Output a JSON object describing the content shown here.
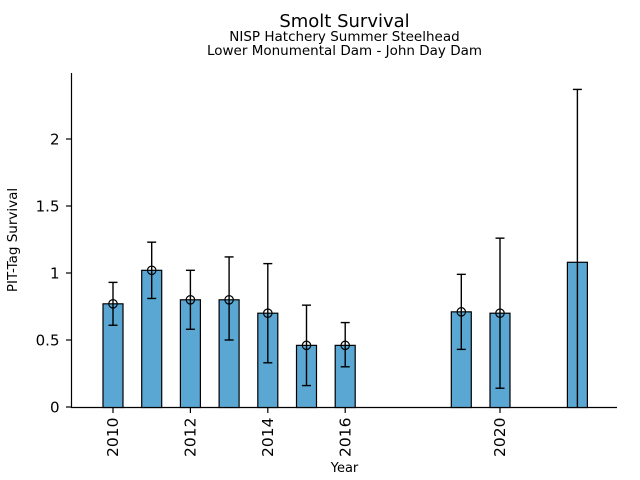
{
  "chart_data": {
    "type": "bar",
    "title": "Smolt Survival",
    "subtitle_lines": [
      "NISP Hatchery Summer Steelhead",
      "Lower Monumental Dam - John Day Dam"
    ],
    "xlabel": "Year",
    "ylabel": "PIT-Tag Survival",
    "xlim": [
      2008.9,
      2023.0
    ],
    "ylim": [
      0,
      2.49
    ],
    "grid": false,
    "legend": null,
    "bar_color": "#59A7D2",
    "bar_edge_color": "#000000",
    "error_bar_color": "#000000",
    "marker_style": "open-circle",
    "yticks": [
      {
        "value": 0,
        "label": "0"
      },
      {
        "value": 0.5,
        "label": "0.5"
      },
      {
        "value": 1,
        "label": "1"
      },
      {
        "value": 1.5,
        "label": "1.5"
      },
      {
        "value": 2,
        "label": "2"
      }
    ],
    "xticks": [
      {
        "value": 2010,
        "label": "2010"
      },
      {
        "value": 2012,
        "label": "2012"
      },
      {
        "value": 2014,
        "label": "2014"
      },
      {
        "value": 2016,
        "label": "2016"
      },
      {
        "value": 2020,
        "label": "2020"
      }
    ],
    "points": [
      {
        "year": 2010,
        "value": 0.77,
        "err_low": 0.61,
        "err_high": 0.93,
        "marker": true
      },
      {
        "year": 2011,
        "value": 1.02,
        "err_low": 0.81,
        "err_high": 1.23,
        "marker": true
      },
      {
        "year": 2012,
        "value": 0.8,
        "err_low": 0.58,
        "err_high": 1.02,
        "marker": true
      },
      {
        "year": 2013,
        "value": 0.8,
        "err_low": 0.5,
        "err_high": 1.12,
        "marker": true
      },
      {
        "year": 2014,
        "value": 0.7,
        "err_low": 0.33,
        "err_high": 1.07,
        "marker": true
      },
      {
        "year": 2015,
        "value": 0.46,
        "err_low": 0.16,
        "err_high": 0.76,
        "marker": true
      },
      {
        "year": 2016,
        "value": 0.46,
        "err_low": 0.3,
        "err_high": 0.63,
        "marker": true
      },
      {
        "year": 2019,
        "value": 0.71,
        "err_low": 0.43,
        "err_high": 0.99,
        "marker": true
      },
      {
        "year": 2020,
        "value": 0.7,
        "err_low": 0.14,
        "err_high": 1.26,
        "marker": true
      },
      {
        "year": 2022,
        "value": 1.08,
        "err_low": 0.0,
        "err_high": 2.37,
        "marker": false,
        "err_low_cap": false
      }
    ]
  }
}
